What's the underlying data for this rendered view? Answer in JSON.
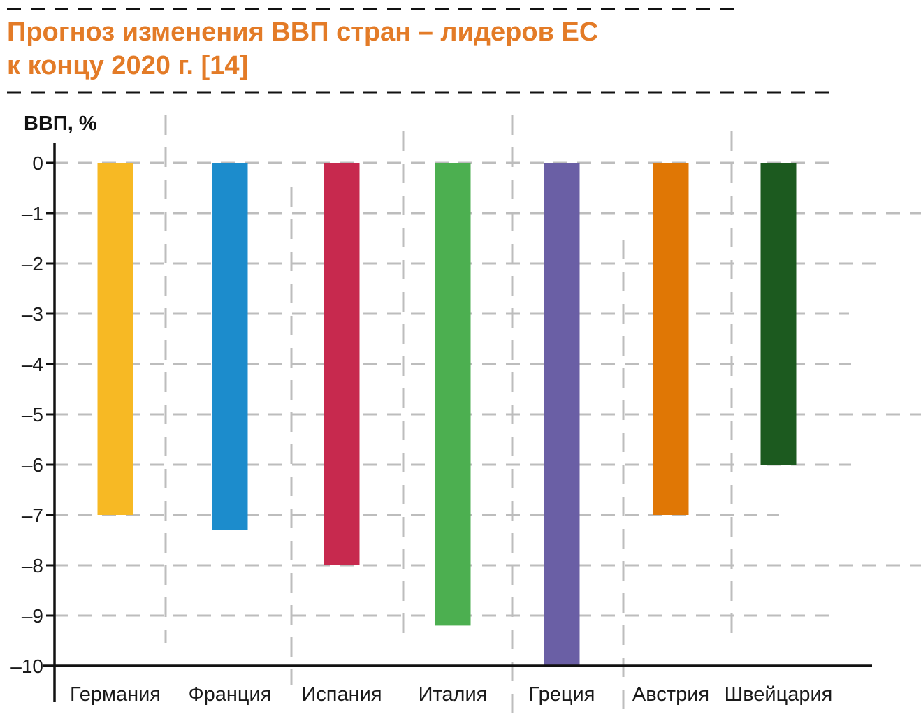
{
  "title_lines": [
    "Прогноз изменения ВВП стран – лидеров ЕС",
    "к концу 2020 г. [14]"
  ],
  "colors": {
    "title": "#e37b27",
    "grid": "#bdbdbd",
    "axis": "#111111"
  },
  "chart_data": {
    "type": "bar",
    "title": "Прогноз изменения ВВП стран – лидеров ЕС к концу 2020 г. [14]",
    "ylabel": "ВВП, %",
    "xlabel": "",
    "ylim": [
      -10,
      0
    ],
    "yticks": [
      {
        "value": 0,
        "label": "0"
      },
      {
        "value": -1,
        "label": "–1"
      },
      {
        "value": -2,
        "label": "–2"
      },
      {
        "value": -3,
        "label": "–3"
      },
      {
        "value": -4,
        "label": "–4"
      },
      {
        "value": -5,
        "label": "–5"
      },
      {
        "value": -6,
        "label": "–6"
      },
      {
        "value": -7,
        "label": "–7"
      },
      {
        "value": -8,
        "label": "–8"
      },
      {
        "value": -9,
        "label": "–9"
      },
      {
        "value": -10,
        "label": "–10"
      }
    ],
    "categories": [
      "Германия",
      "Франция",
      "Испания",
      "Италия",
      "Греция",
      "Австрия",
      "Швейцария"
    ],
    "values": [
      -7.0,
      -7.3,
      -8.0,
      -9.2,
      -10.0,
      -7.0,
      -6.0
    ],
    "bar_colors": [
      "#f7b924",
      "#1c8ccc",
      "#c7294e",
      "#4caf50",
      "#6a5fa5",
      "#e07705",
      "#1c5a1f"
    ],
    "grid": true,
    "legend": "none"
  }
}
